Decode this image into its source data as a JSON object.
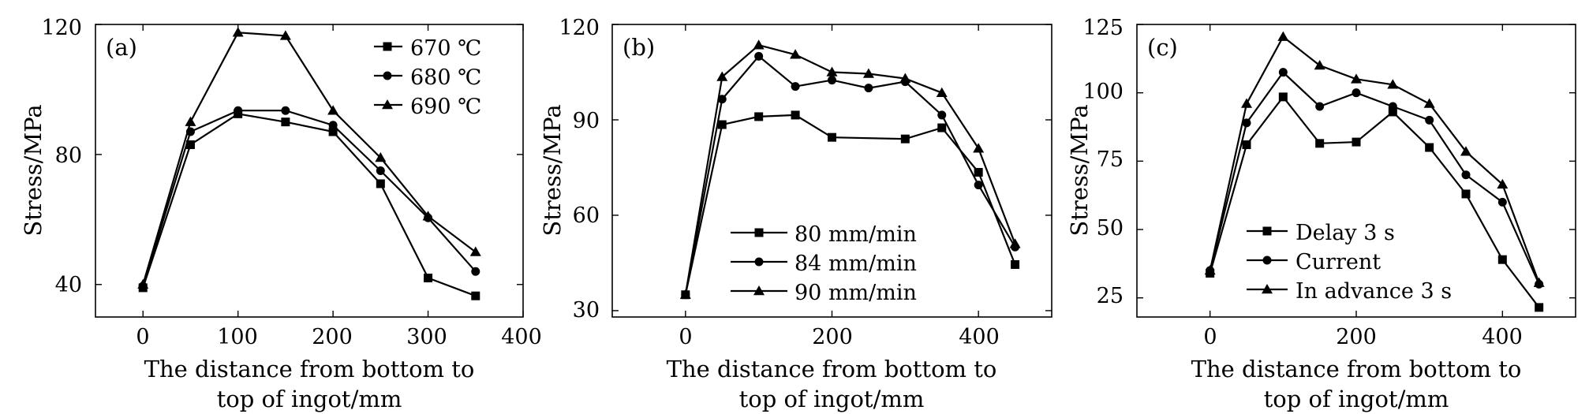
{
  "chart_data": [
    {
      "type": "line",
      "panel_label": "(a)",
      "xlabel_line1": "The distance from bottom to",
      "xlabel_line2": "top of ingot/mm",
      "ylabel": "Stress/MPa",
      "xlim": [
        -50,
        400
      ],
      "ylim": [
        30,
        120
      ],
      "xticks": [
        0,
        100,
        200,
        300,
        400
      ],
      "yticks": [
        40,
        80,
        120
      ],
      "legend_position": "top-right",
      "series": [
        {
          "name": "670 ℃",
          "marker": "square",
          "x": [
            0,
            50,
            100,
            150,
            200,
            250,
            300,
            350
          ],
          "values": [
            39,
            83,
            92.5,
            90,
            87,
            71,
            42,
            36.5
          ]
        },
        {
          "name": "680 ℃",
          "marker": "circle",
          "x": [
            0,
            50,
            100,
            150,
            200,
            250,
            300,
            350
          ],
          "values": [
            39.5,
            87,
            93.5,
            93.5,
            89,
            75,
            60.5,
            44
          ]
        },
        {
          "name": "690 ℃",
          "marker": "triangle",
          "x": [
            0,
            50,
            100,
            150,
            200,
            250,
            300,
            350
          ],
          "values": [
            40,
            90,
            117.5,
            116.5,
            93.5,
            79,
            61,
            50
          ]
        }
      ]
    },
    {
      "type": "line",
      "panel_label": "(b)",
      "xlabel_line1": "The distance from bottom to",
      "xlabel_line2": "top of ingot/mm",
      "ylabel": "Stress/MPa",
      "xlim": [
        -100,
        500
      ],
      "ylim": [
        28,
        120
      ],
      "xticks": [
        0,
        200,
        400
      ],
      "yticks": [
        30,
        60,
        90,
        120
      ],
      "legend_position": "bottom-center",
      "series": [
        {
          "name": "80 mm/min",
          "marker": "square",
          "x": [
            0,
            50,
            100,
            150,
            200,
            300,
            350,
            400,
            450
          ],
          "values": [
            35,
            88.5,
            91,
            91.5,
            84.5,
            84,
            87.5,
            73.5,
            44.5
          ]
        },
        {
          "name": "84 mm/min",
          "marker": "circle",
          "x": [
            0,
            50,
            100,
            150,
            200,
            250,
            300,
            350,
            400,
            450
          ],
          "values": [
            35,
            96.5,
            110,
            100.5,
            102.5,
            100,
            102,
            91.5,
            69.5,
            50
          ]
        },
        {
          "name": "90 mm/min",
          "marker": "triangle",
          "x": [
            0,
            50,
            100,
            150,
            200,
            250,
            300,
            350,
            400,
            450
          ],
          "values": [
            35,
            103.5,
            113.5,
            110.5,
            105,
            104.5,
            103,
            98.5,
            81,
            51
          ]
        }
      ]
    },
    {
      "type": "line",
      "panel_label": "(c)",
      "xlabel_line1": "The distance from bottom to",
      "xlabel_line2": "top of ingot/mm",
      "ylabel": "Stress/MPa",
      "xlim": [
        -100,
        500
      ],
      "ylim": [
        18,
        125
      ],
      "xticks": [
        0,
        200,
        400
      ],
      "yticks": [
        25,
        50,
        75,
        100,
        125
      ],
      "legend_position": "bottom-left",
      "series": [
        {
          "name": "Delay 3 s",
          "marker": "square",
          "x": [
            0,
            50,
            100,
            150,
            200,
            250,
            300,
            350,
            400,
            450
          ],
          "values": [
            34,
            81,
            98.5,
            81.5,
            82,
            93,
            80,
            63,
            39,
            21.5
          ]
        },
        {
          "name": "Current",
          "marker": "circle",
          "x": [
            0,
            50,
            100,
            150,
            200,
            250,
            300,
            350,
            400,
            450
          ],
          "values": [
            35,
            89,
            107.5,
            95,
            100,
            95,
            90,
            70,
            60,
            30
          ]
        },
        {
          "name": "In advance 3 s",
          "marker": "triangle",
          "x": [
            0,
            50,
            100,
            150,
            200,
            250,
            300,
            350,
            400,
            450
          ],
          "values": [
            35,
            96,
            120.5,
            110,
            105,
            103,
            96,
            78.5,
            66.5,
            30.5
          ]
        }
      ]
    }
  ]
}
